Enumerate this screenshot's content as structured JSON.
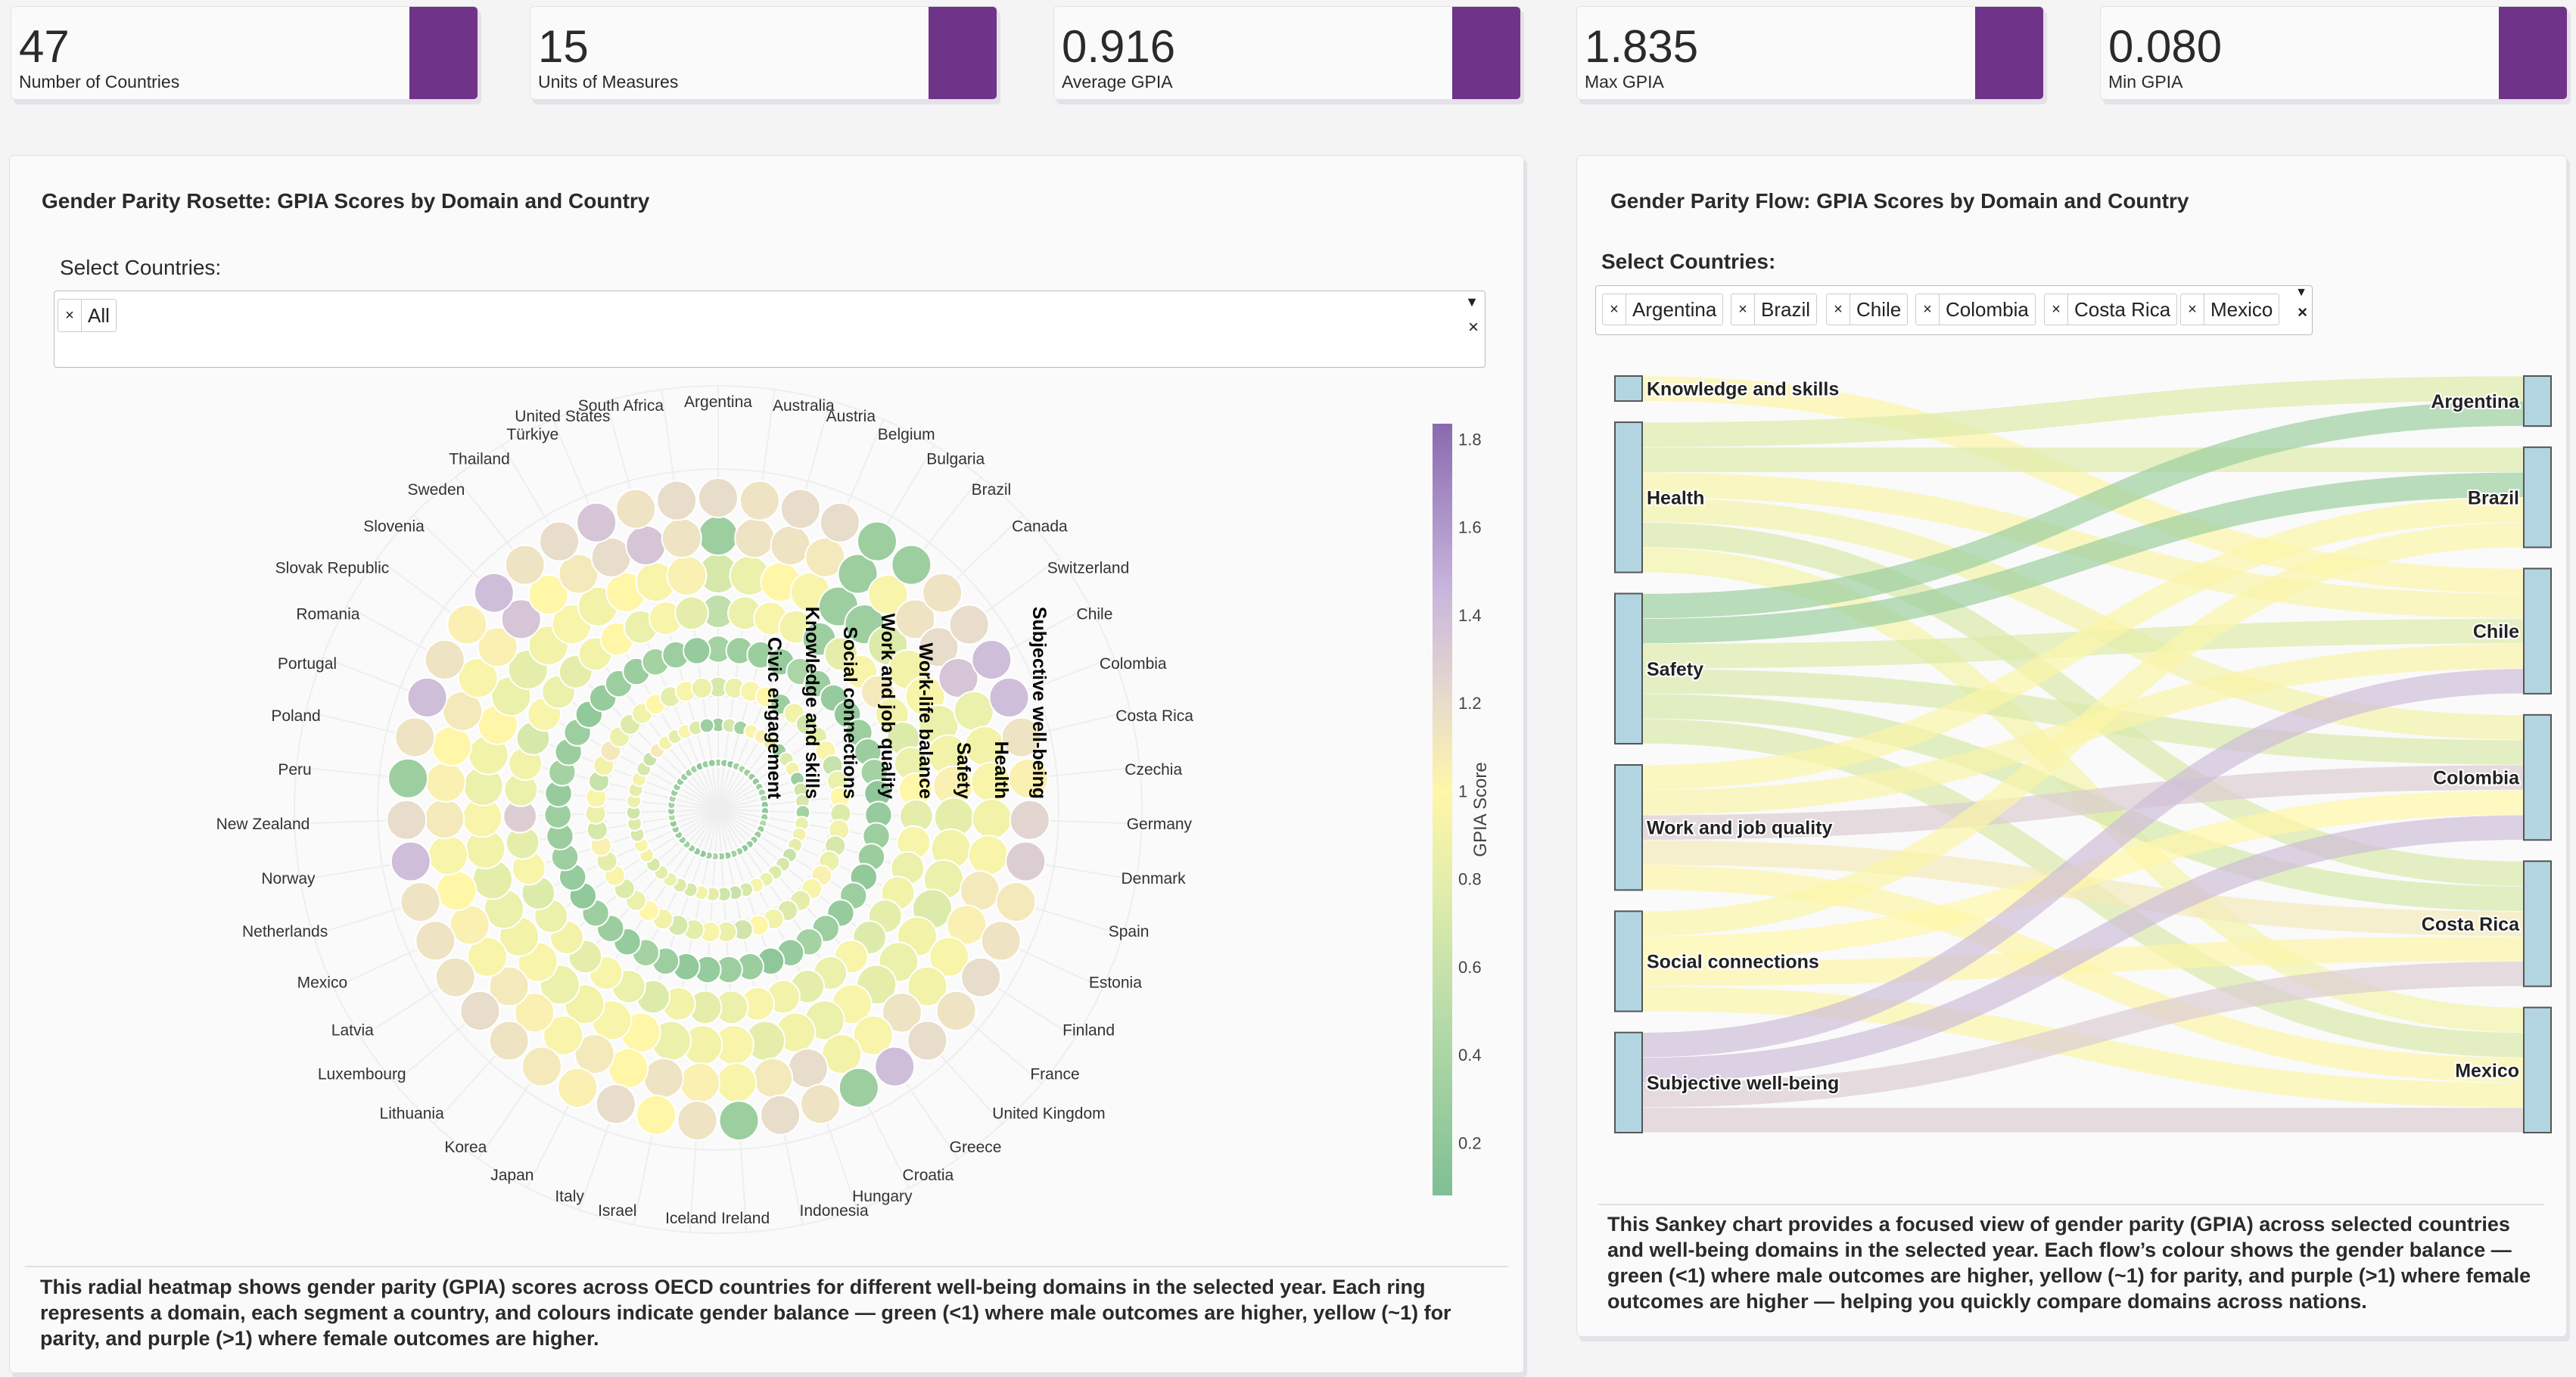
{
  "stats": [
    {
      "value": "47",
      "label": "Number of Countries"
    },
    {
      "value": "15",
      "label": "Units of Measures"
    },
    {
      "value": "0.916",
      "label": "Average GPIA"
    },
    {
      "value": "1.835",
      "label": "Max GPIA"
    },
    {
      "value": "0.080",
      "label": "Min GPIA"
    }
  ],
  "colors": {
    "accent": "#70338a",
    "node": "#b3d5e2"
  },
  "rosette": {
    "title": "Gender Parity Rosette: GPIA Scores by Domain and Country",
    "select_label": "Select Countries:",
    "selected": [
      "All"
    ],
    "remove_glyph": "×",
    "description": "This radial heatmap shows gender parity (GPIA) scores across OECD countries for different well-being domains in the selected year. Each ring represents a domain, each segment a country, and colours indicate gender balance — green (<1) where male outcomes are higher, yellow (~1) for parity, and purple (>1) where female outcomes are higher."
  },
  "sankey": {
    "title": "Gender Parity Flow: GPIA Scores by Domain and Country",
    "select_label": "Select Countries:",
    "selected": [
      "Argentina",
      "Brazil",
      "Chile",
      "Colombia",
      "Costa Rica",
      "Mexico"
    ],
    "remove_glyph": "×",
    "description": "This Sankey chart provides a focused view of gender parity (GPIA) across selected countries and well-being domains in the selected year. Each flow’s colour shows the gender balance — green (<1) where male outcomes are higher, yellow (~1) for parity, and purple (>1) where female outcomes are higher — helping you quickly compare domains across nations."
  },
  "chart_data": [
    {
      "type": "heatmap",
      "subtype": "radial",
      "countries": [
        "Argentina",
        "Australia",
        "Austria",
        "Belgium",
        "Bulgaria",
        "Brazil",
        "Canada",
        "Switzerland",
        "Chile",
        "Colombia",
        "Costa Rica",
        "Czechia",
        "Germany",
        "Denmark",
        "Spain",
        "Estonia",
        "Finland",
        "France",
        "United Kingdom",
        "Greece",
        "Croatia",
        "Hungary",
        "Indonesia",
        "Ireland",
        "Iceland",
        "Israel",
        "Italy",
        "Japan",
        "Korea",
        "Lithuania",
        "Luxembourg",
        "Latvia",
        "Mexico",
        "Netherlands",
        "Norway",
        "New Zealand",
        "Peru",
        "Poland",
        "Portugal",
        "Romania",
        "Slovak Republic",
        "Slovenia",
        "Sweden",
        "Thailand",
        "Türkiye",
        "United States",
        "South Africa"
      ],
      "domains": [
        "Civic engagement",
        "Knowledge and skills",
        "Social connections",
        "Work and job quality",
        "Work-life balance",
        "Safety",
        "Health",
        "Subjective well-being"
      ],
      "values": [
        [
          0.3,
          0.25,
          0.2,
          0.35,
          0.4,
          0.3,
          0.28,
          0.22,
          0.3,
          0.35,
          0.4,
          0.2,
          0.25,
          0.3,
          0.45,
          0.3,
          0.28,
          0.3,
          0.25,
          0.2,
          0.3,
          0.35,
          0.25,
          0.3,
          0.4,
          0.3,
          0.2,
          0.25,
          0.3,
          0.35,
          0.3,
          0.28,
          0.3,
          0.25,
          0.45,
          0.3,
          0.35,
          0.4,
          0.3,
          0.28,
          0.25,
          0.3,
          0.3,
          0.35,
          0.2,
          0.3,
          0.25
        ],
        [
          0.3,
          0.7,
          0.35,
          0.95,
          1.05,
          0.85,
          0.3,
          0.75,
          0.9,
          0.3,
          0.65,
          0.7,
          0.35,
          0.85,
          0.9,
          0.8,
          0.6,
          0.7,
          0.75,
          0.85,
          0.95,
          0.7,
          0.6,
          0.65,
          0.8,
          0.9,
          0.7,
          0.75,
          0.85,
          0.8,
          0.7,
          0.9,
          0.95,
          0.7,
          0.75,
          0.65,
          0.85,
          0.8,
          0.9,
          0.7,
          0.6,
          1.1,
          0.9,
          0.8,
          0.95,
          0.75,
          0.3
        ],
        [
          0.7,
          0.85,
          0.95,
          1.0,
          0.3,
          0.9,
          0.65,
          0.8,
          0.95,
          0.6,
          0.85,
          1.0,
          0.75,
          0.9,
          0.7,
          0.85,
          1.05,
          0.95,
          0.8,
          0.75,
          0.9,
          1.0,
          0.65,
          0.85,
          0.95,
          0.8,
          0.7,
          0.9,
          1.0,
          0.85,
          0.75,
          0.95,
          0.8,
          1.05,
          0.7,
          0.85,
          0.95,
          0.6,
          0.9,
          1.1,
          0.85,
          0.75,
          0.9,
          1.0,
          0.8,
          0.95,
          0.85
        ],
        [
          0.35,
          0.3,
          0.28,
          0.25,
          0.4,
          0.3,
          0.25,
          0.22,
          0.3,
          0.28,
          0.35,
          0.2,
          0.25,
          0.3,
          0.28,
          0.22,
          0.3,
          0.25,
          0.3,
          0.35,
          0.25,
          0.2,
          0.28,
          0.3,
          0.25,
          0.22,
          0.3,
          0.35,
          0.25,
          0.28,
          0.3,
          0.22,
          0.25,
          0.3,
          0.28,
          0.3,
          0.25,
          0.35,
          0.28,
          0.3,
          0.22,
          0.25,
          0.3,
          0.28,
          0.35,
          0.3,
          0.25
        ],
        [
          0.55,
          0.85,
          0.95,
          0.9,
          0.3,
          0.8,
          0.95,
          1.1,
          0.9,
          0.75,
          0.85,
          1.0,
          0.8,
          0.95,
          0.85,
          0.9,
          0.8,
          0.75,
          0.95,
          0.85,
          0.8,
          0.9,
          0.95,
          0.85,
          0.8,
          0.9,
          0.75,
          0.85,
          0.95,
          0.8,
          0.9,
          0.85,
          0.75,
          0.95,
          0.8,
          1.3,
          0.85,
          0.9,
          0.7,
          0.95,
          0.85,
          0.8,
          0.9,
          1.0,
          0.85,
          0.95,
          0.8
        ],
        [
          0.7,
          0.85,
          1.0,
          0.95,
          0.3,
          0.3,
          0.75,
          0.9,
          0.95,
          0.85,
          0.9,
          1.05,
          0.8,
          0.9,
          0.85,
          0.75,
          0.9,
          0.85,
          0.8,
          0.95,
          0.85,
          0.9,
          0.8,
          0.95,
          0.9,
          0.85,
          1.0,
          0.95,
          0.9,
          0.85,
          0.95,
          0.9,
          0.85,
          0.8,
          0.9,
          0.95,
          0.85,
          0.9,
          1.0,
          0.85,
          0.8,
          0.9,
          0.95,
          0.9,
          1.0,
          0.95,
          1.05
        ],
        [
          0.3,
          1.15,
          1.15,
          1.1,
          0.3,
          0.95,
          1.15,
          1.2,
          1.35,
          0.85,
          0.9,
          0.95,
          0.9,
          0.95,
          1.1,
          1.05,
          0.95,
          0.9,
          1.15,
          0.95,
          0.9,
          1.2,
          1.1,
          0.95,
          1.05,
          1.15,
          1.0,
          1.1,
          0.95,
          1.05,
          1.1,
          0.95,
          1.05,
          1.0,
          0.95,
          1.1,
          1.05,
          1.0,
          1.1,
          0.95,
          1.05,
          1.35,
          1.0,
          1.1,
          1.2,
          1.35,
          1.15
        ],
        [
          1.2,
          1.15,
          1.2,
          1.2,
          0.3,
          0.3,
          1.15,
          1.2,
          1.4,
          1.4,
          1.15,
          1.05,
          1.25,
          1.3,
          1.1,
          1.15,
          1.2,
          1.15,
          1.2,
          1.4,
          0.3,
          1.15,
          1.2,
          0.3,
          1.15,
          1.0,
          1.2,
          1.05,
          1.1,
          1.15,
          1.2,
          1.15,
          1.15,
          1.15,
          1.4,
          1.2,
          0.3,
          1.15,
          1.4,
          1.15,
          1.05,
          1.4,
          1.15,
          1.2,
          1.35,
          1.15,
          1.2
        ]
      ],
      "colorbar": {
        "title": "GPIA Score",
        "ticks": [
          "0.2",
          "0.4",
          "0.6",
          "0.8",
          "1",
          "1.2",
          "1.4",
          "1.6",
          "1.8"
        ],
        "tick_values": [
          0.2,
          0.4,
          0.6,
          0.8,
          1,
          1.2,
          1.4,
          1.6,
          1.8
        ],
        "range": [
          0.08,
          1.835
        ]
      }
    },
    {
      "type": "sankey",
      "sources": [
        "Knowledge and skills",
        "Health",
        "Safety",
        "Work and job quality",
        "Social connections",
        "Subjective well-being"
      ],
      "targets": [
        "Argentina",
        "Brazil",
        "Chile",
        "Colombia",
        "Costa Rica",
        "Mexico"
      ],
      "links": [
        {
          "source": 0,
          "target": 2,
          "value": 0.98
        },
        {
          "source": 1,
          "target": 0,
          "value": 0.75
        },
        {
          "source": 1,
          "target": 1,
          "value": 0.75
        },
        {
          "source": 1,
          "target": 2,
          "value": 0.95
        },
        {
          "source": 1,
          "target": 3,
          "value": 0.9
        },
        {
          "source": 1,
          "target": 4,
          "value": 0.72
        },
        {
          "source": 1,
          "target": 5,
          "value": 0.92
        },
        {
          "source": 2,
          "target": 0,
          "value": 0.3
        },
        {
          "source": 2,
          "target": 1,
          "value": 0.3
        },
        {
          "source": 2,
          "target": 2,
          "value": 0.75
        },
        {
          "source": 2,
          "target": 3,
          "value": 0.72
        },
        {
          "source": 2,
          "target": 4,
          "value": 0.7
        },
        {
          "source": 2,
          "target": 5,
          "value": 0.72
        },
        {
          "source": 3,
          "target": 1,
          "value": 0.97
        },
        {
          "source": 3,
          "target": 2,
          "value": 0.96
        },
        {
          "source": 3,
          "target": 3,
          "value": 1.3
        },
        {
          "source": 3,
          "target": 4,
          "value": 1.1
        },
        {
          "source": 3,
          "target": 5,
          "value": 0.98
        },
        {
          "source": 4,
          "target": 1,
          "value": 0.97
        },
        {
          "source": 4,
          "target": 3,
          "value": 1.0
        },
        {
          "source": 4,
          "target": 4,
          "value": 0.98
        },
        {
          "source": 4,
          "target": 5,
          "value": 0.97
        },
        {
          "source": 5,
          "target": 2,
          "value": 1.4
        },
        {
          "source": 5,
          "target": 3,
          "value": 1.4
        },
        {
          "source": 5,
          "target": 4,
          "value": 1.3
        },
        {
          "source": 5,
          "target": 5,
          "value": 1.3
        }
      ]
    }
  ]
}
